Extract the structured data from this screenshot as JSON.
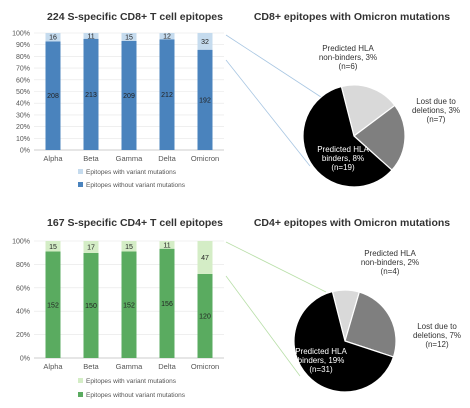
{
  "charts": [
    {
      "type": "bar",
      "title": "224 S-specific CD8+ T cell epitopes",
      "categories": [
        "Alpha",
        "Beta",
        "Gamma",
        "Delta",
        "Omicron"
      ],
      "series": [
        {
          "name": "Epitopes with variant mutations",
          "values": [
            16,
            11,
            15,
            12,
            32
          ],
          "color": "#c5dbee"
        },
        {
          "name": "Epitopes without variant mutations",
          "values": [
            208,
            213,
            209,
            212,
            192
          ],
          "color": "#4a83bd"
        }
      ],
      "stacked": "percent",
      "yticks": [
        "0%",
        "10%",
        "20%",
        "30%",
        "40%",
        "50%",
        "60%",
        "70%",
        "80%",
        "90%",
        "100%"
      ],
      "ylim": [
        0,
        100
      ]
    },
    {
      "type": "pie",
      "title": "CD8+ epitopes with Omicron mutations",
      "slices": [
        {
          "lines": [
            "Predicted HLA",
            "non-binders, 3%",
            "(n=6)"
          ],
          "value": 6,
          "color": "#d9d9d9"
        },
        {
          "lines": [
            "Lost due to",
            "deletions, 3%",
            "(n=7)"
          ],
          "value": 7,
          "color": "#7f7f7f"
        },
        {
          "lines": [
            "Predicted HLA",
            "binders, 8%",
            "(n=19)"
          ],
          "value": 19,
          "color": "#000000"
        }
      ]
    },
    {
      "type": "bar",
      "title": "167 S-specific CD4+ T cell epitopes",
      "categories": [
        "Alpha",
        "Beta",
        "Gamma",
        "Delta",
        "Omicron"
      ],
      "series": [
        {
          "name": "Epitopes with variant mutations",
          "values": [
            15,
            17,
            15,
            11,
            47
          ],
          "color": "#d4edc6"
        },
        {
          "name": "Epitopes without variant mutations",
          "values": [
            152,
            150,
            152,
            156,
            120
          ],
          "color": "#5aab60"
        }
      ],
      "stacked": "percent",
      "yticks": [
        "0%",
        "20%",
        "40%",
        "60%",
        "80%",
        "100%"
      ],
      "ylim": [
        0,
        100
      ]
    },
    {
      "type": "pie",
      "title": "CD4+ epitopes with Omicron mutations",
      "slices": [
        {
          "lines": [
            "Predicted HLA",
            "non-binders, 2%",
            "(n=4)"
          ],
          "value": 4,
          "color": "#d9d9d9"
        },
        {
          "lines": [
            "Lost due to",
            "deletions, 7%",
            "(n=12)"
          ],
          "value": 12,
          "color": "#7f7f7f"
        },
        {
          "lines": [
            "Predicted HLA",
            "binders, 19%",
            "(n=31)"
          ],
          "value": 31,
          "color": "#000000"
        }
      ]
    }
  ]
}
